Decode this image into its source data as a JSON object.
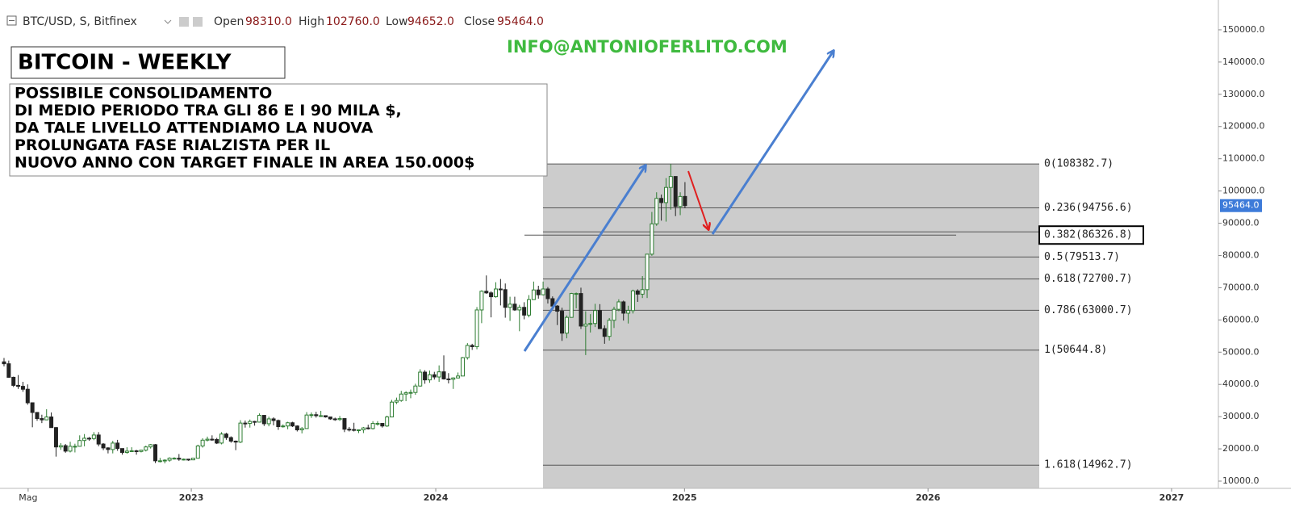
{
  "header": {
    "symbol": "BTC/USD, S, Bitfinex",
    "fields": [
      {
        "name": "Open",
        "value": "98310.0"
      },
      {
        "name": "High",
        "value": "102760.0"
      },
      {
        "name": "Low",
        "value": "94652.0"
      },
      {
        "name": "Close",
        "value": "95464.0"
      }
    ]
  },
  "chart_data": {
    "type": "candlestick",
    "title": "BITCOIN - WEEKLY",
    "subtitle": [
      "POSSIBILE CONSOLIDAMENTO",
      "DI MEDIO PERIODO TRA GLI 86 E I 90 MILA $,",
      "DA TALE LIVELLO ATTENDIAMO LA NUOVA",
      "PROLUNGATA FASE RIALZISTA PER IL",
      "NUOVO ANNO CON TARGET FINALE IN AREA 150.000$"
    ],
    "annotation": "INFO@ANTONIOFERLITO.COM",
    "up_color": "#2e7d32",
    "down_color": "#222222",
    "ohlc": [
      [
        47000,
        48200,
        45600,
        46400
      ],
      [
        46400,
        47400,
        42100,
        42200
      ],
      [
        42200,
        42400,
        39200,
        39700
      ],
      [
        39700,
        42900,
        38600,
        39400
      ],
      [
        39400,
        40800,
        37700,
        38500
      ],
      [
        38500,
        40000,
        33700,
        34300
      ],
      [
        34300,
        34400,
        26700,
        31300
      ],
      [
        31300,
        31400,
        28700,
        29400
      ],
      [
        29400,
        30600,
        28000,
        29000
      ],
      [
        29000,
        32300,
        29000,
        29900
      ],
      [
        29900,
        31300,
        26600,
        26600
      ],
      [
        26600,
        26800,
        17600,
        20600
      ],
      [
        20600,
        21800,
        19700,
        21000
      ],
      [
        21000,
        21500,
        18800,
        19300
      ],
      [
        19300,
        22200,
        18900,
        20800
      ],
      [
        20800,
        21600,
        18900,
        20800
      ],
      [
        20800,
        24200,
        20700,
        22600
      ],
      [
        22600,
        24600,
        20800,
        23300
      ],
      [
        23300,
        23700,
        22500,
        23200
      ],
      [
        23200,
        25200,
        22700,
        24300
      ],
      [
        24300,
        25200,
        20800,
        21500
      ],
      [
        21500,
        21800,
        19600,
        20300
      ],
      [
        20300,
        20500,
        18600,
        19800
      ],
      [
        19800,
        22500,
        18600,
        21800
      ],
      [
        21800,
        22800,
        19400,
        20100
      ],
      [
        20100,
        20100,
        18200,
        18900
      ],
      [
        18900,
        20500,
        18500,
        19300
      ],
      [
        19300,
        20500,
        19000,
        19400
      ],
      [
        19400,
        19700,
        18200,
        19200
      ],
      [
        19200,
        19700,
        18900,
        19600
      ],
      [
        19600,
        21000,
        19200,
        20600
      ],
      [
        20600,
        21500,
        20100,
        21300
      ],
      [
        21300,
        21500,
        15600,
        16300
      ],
      [
        16300,
        17200,
        15800,
        16300
      ],
      [
        16300,
        16800,
        15500,
        16500
      ],
      [
        16500,
        17400,
        16000,
        17100
      ],
      [
        17100,
        17400,
        16700,
        17100
      ],
      [
        17100,
        18400,
        16300,
        16800
      ],
      [
        16800,
        17000,
        16400,
        16800
      ],
      [
        16800,
        16900,
        16300,
        16600
      ],
      [
        16600,
        17200,
        16500,
        17100
      ],
      [
        17100,
        21300,
        17000,
        20900
      ],
      [
        20900,
        23300,
        20400,
        22700
      ],
      [
        22700,
        23800,
        22300,
        23000
      ],
      [
        23000,
        24200,
        22500,
        22900
      ],
      [
        22900,
        23400,
        21500,
        21800
      ],
      [
        21800,
        25200,
        21400,
        24600
      ],
      [
        24600,
        25000,
        22800,
        23500
      ],
      [
        23500,
        23900,
        21900,
        22400
      ],
      [
        22400,
        22600,
        19600,
        22100
      ],
      [
        22100,
        28900,
        21800,
        28000
      ],
      [
        28000,
        28800,
        26600,
        27900
      ],
      [
        27900,
        29100,
        26600,
        28500
      ],
      [
        28500,
        28700,
        27200,
        28300
      ],
      [
        28300,
        31000,
        28200,
        30400
      ],
      [
        30400,
        30400,
        27100,
        27800
      ],
      [
        27800,
        30000,
        27000,
        29300
      ],
      [
        29300,
        29800,
        27300,
        28800
      ],
      [
        28800,
        29100,
        25900,
        26900
      ],
      [
        26900,
        27600,
        26600,
        27100
      ],
      [
        27100,
        28400,
        26100,
        28100
      ],
      [
        28100,
        28400,
        26800,
        27100
      ],
      [
        27100,
        27300,
        25400,
        25900
      ],
      [
        25900,
        26800,
        24800,
        26300
      ],
      [
        26300,
        31400,
        26300,
        30500
      ],
      [
        30500,
        31300,
        29600,
        30600
      ],
      [
        30600,
        31500,
        29700,
        30300
      ],
      [
        30300,
        31800,
        29900,
        30300
      ],
      [
        30300,
        30400,
        29700,
        29900
      ],
      [
        29900,
        29900,
        29000,
        29300
      ],
      [
        29300,
        29700,
        28700,
        29100
      ],
      [
        29100,
        30200,
        28700,
        29400
      ],
      [
        29400,
        29500,
        25200,
        26100
      ],
      [
        26100,
        26800,
        25400,
        26000
      ],
      [
        26000,
        28100,
        25400,
        25800
      ],
      [
        25800,
        26000,
        24900,
        25900
      ],
      [
        25900,
        26800,
        24900,
        26500
      ],
      [
        26500,
        27500,
        26000,
        26300
      ],
      [
        26300,
        28600,
        26000,
        27900
      ],
      [
        27900,
        28600,
        27200,
        27900
      ],
      [
        27900,
        28000,
        26600,
        27100
      ],
      [
        27100,
        30300,
        26800,
        29900
      ],
      [
        29900,
        35200,
        29800,
        34500
      ],
      [
        34500,
        35900,
        33900,
        35000
      ],
      [
        35000,
        38000,
        34600,
        37000
      ],
      [
        37000,
        37900,
        34800,
        37400
      ],
      [
        37400,
        38400,
        35700,
        37500
      ],
      [
        37500,
        40200,
        36800,
        39500
      ],
      [
        39500,
        44700,
        39300,
        43800
      ],
      [
        43800,
        44400,
        40200,
        41400
      ],
      [
        41400,
        44300,
        40500,
        43000
      ],
      [
        43000,
        43900,
        41500,
        42300
      ],
      [
        42300,
        45900,
        40800,
        43900
      ],
      [
        43900,
        49000,
        41500,
        41700
      ],
      [
        41700,
        43500,
        40300,
        41600
      ],
      [
        41600,
        42200,
        38600,
        42000
      ],
      [
        42000,
        43700,
        41900,
        42600
      ],
      [
        42600,
        48500,
        42600,
        48300
      ],
      [
        48300,
        52800,
        47700,
        52100
      ],
      [
        52100,
        52600,
        50700,
        51700
      ],
      [
        51700,
        64000,
        50900,
        63100
      ],
      [
        63100,
        69200,
        59000,
        68900
      ],
      [
        68900,
        73800,
        68100,
        68400
      ],
      [
        68400,
        68900,
        60800,
        67200
      ],
      [
        67200,
        71700,
        66900,
        69600
      ],
      [
        69600,
        72700,
        64500,
        69400
      ],
      [
        69400,
        71300,
        60700,
        63900
      ],
      [
        63900,
        67200,
        59700,
        64900
      ],
      [
        64900,
        67200,
        62800,
        63100
      ],
      [
        63100,
        64700,
        56500,
        63900
      ],
      [
        63900,
        65500,
        60200,
        61500
      ],
      [
        61500,
        67700,
        60800,
        66300
      ],
      [
        66300,
        71900,
        66300,
        69300
      ],
      [
        69300,
        70600,
        66600,
        67800
      ],
      [
        67800,
        71900,
        67600,
        69600
      ],
      [
        69600,
        70200,
        65100,
        66600
      ],
      [
        66600,
        67300,
        63400,
        64300
      ],
      [
        64300,
        64600,
        58400,
        62700
      ],
      [
        62700,
        63800,
        53500,
        55900
      ],
      [
        55900,
        61400,
        54300,
        60800
      ],
      [
        60800,
        68400,
        60700,
        68200
      ],
      [
        68200,
        68500,
        63600,
        68200
      ],
      [
        68200,
        70000,
        57200,
        58100
      ],
      [
        58100,
        62700,
        49100,
        58700
      ],
      [
        58700,
        61800,
        56100,
        58900
      ],
      [
        58900,
        65000,
        57800,
        62900
      ],
      [
        62900,
        64900,
        57200,
        57300
      ],
      [
        57300,
        58300,
        52600,
        54900
      ],
      [
        54900,
        60600,
        53600,
        59900
      ],
      [
        59900,
        64100,
        57500,
        63300
      ],
      [
        63300,
        66400,
        62700,
        65600
      ],
      [
        65600,
        66000,
        59800,
        62100
      ],
      [
        62100,
        64400,
        58900,
        62900
      ],
      [
        62900,
        69400,
        62000,
        69000
      ],
      [
        69000,
        69500,
        65600,
        68000
      ],
      [
        68000,
        73600,
        66800,
        69400
      ],
      [
        69400,
        80500,
        66800,
        80400
      ],
      [
        80400,
        93500,
        79900,
        89800
      ],
      [
        89800,
        99600,
        89200,
        97700
      ],
      [
        97700,
        98900,
        90800,
        96400
      ],
      [
        96400,
        104000,
        90500,
        101100
      ],
      [
        101100,
        108400,
        94200,
        104500
      ],
      [
        104500,
        104500,
        92200,
        95200
      ],
      [
        95200,
        99600,
        92500,
        98300
      ],
      [
        98310,
        102760,
        94652,
        95464
      ]
    ],
    "xlim": [
      -0.85,
      256.8
    ],
    "xticks": [
      {
        "value": 5.1,
        "label": "Mag"
      },
      {
        "value": 39.6,
        "label": "2023"
      },
      {
        "value": 91.3,
        "label": "2024"
      },
      {
        "value": 143.9,
        "label": "2025"
      },
      {
        "value": 195.4,
        "label": "2026"
      },
      {
        "value": 246.9,
        "label": "2027"
      }
    ],
    "ylim": [
      7750,
      159250
    ],
    "yticks": [
      {
        "value": 10000,
        "label": "10000.0"
      },
      {
        "value": 20000,
        "label": "20000.0"
      },
      {
        "value": 30000,
        "label": "30000.0"
      },
      {
        "value": 40000,
        "label": "40000.0"
      },
      {
        "value": 50000,
        "label": "50000.0"
      },
      {
        "value": 60000,
        "label": "60000.0"
      },
      {
        "value": 70000,
        "label": "70000.0"
      },
      {
        "value": 80000,
        "label": "80000.0"
      },
      {
        "value": 90000,
        "label": "90000.0"
      },
      {
        "value": 100000,
        "label": "100000.0"
      },
      {
        "value": 110000,
        "label": "110000.0"
      },
      {
        "value": 120000,
        "label": "120000.0"
      },
      {
        "value": 130000,
        "label": "130000.0"
      },
      {
        "value": 140000,
        "label": "140000.0"
      },
      {
        "value": 150000,
        "label": "150000.0"
      }
    ],
    "grid": false,
    "price_tag": {
      "value": 95464,
      "label": "95464.0"
    },
    "fib_levels": [
      {
        "value": 108382.7,
        "label": "0(108382.7)"
      },
      {
        "value": 94756.6,
        "label": "0.236(94756.6)"
      },
      {
        "value": 86326.8,
        "label": "0.382(86326.8)"
      },
      {
        "value": 79513.7,
        "label": "0.5(79513.7)"
      },
      {
        "value": 72700.7,
        "label": "0.618(72700.7)"
      },
      {
        "value": 63000.7,
        "label": "0.786(63000.7)"
      },
      {
        "value": 50644.8,
        "label": "1(50644.8)"
      },
      {
        "value": 14962.7,
        "label": "1.618(14962.7)"
      }
    ],
    "highlight_level": 2
  }
}
